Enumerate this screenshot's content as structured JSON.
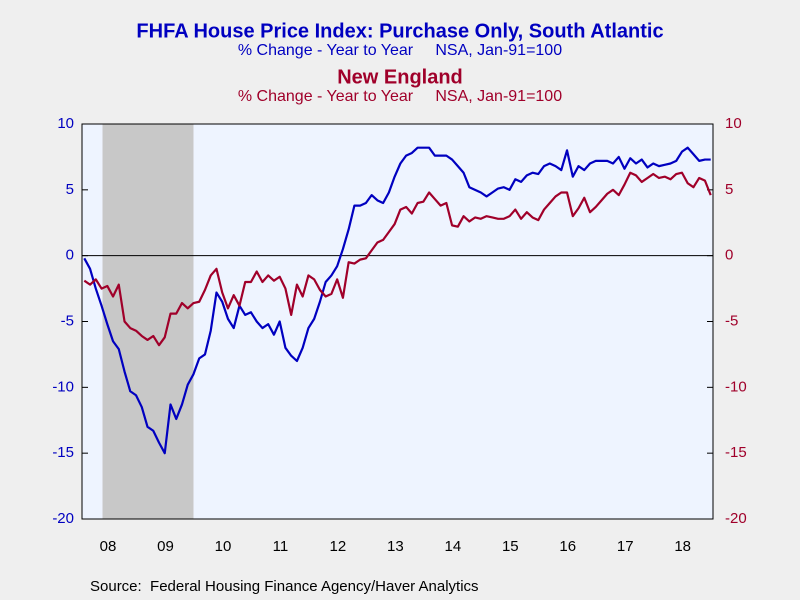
{
  "chart_data": {
    "type": "line",
    "title": "FHFA House Price Index: Purchase Only, South Atlantic",
    "subtitle": "% Change - Year to Year     NSA, Jan-91=100",
    "title2": "New England",
    "subtitle2": "% Change - Year to Year     NSA, Jan-91=100",
    "source": "Source:  Federal Housing Finance Agency/Haver Analytics",
    "xlim": [
      2007.56,
      2018.54
    ],
    "xticks": [
      {
        "value": 2008.5,
        "label": "08"
      },
      {
        "value": 2009.5,
        "label": "09"
      },
      {
        "value": 2010.5,
        "label": "10"
      },
      {
        "value": 2011.5,
        "label": "11"
      },
      {
        "value": 2012.5,
        "label": "12"
      },
      {
        "value": 2013.5,
        "label": "13"
      },
      {
        "value": 2014.5,
        "label": "14"
      },
      {
        "value": 2015.5,
        "label": "15"
      },
      {
        "value": 2016.5,
        "label": "16"
      },
      {
        "value": 2017.5,
        "label": "17"
      },
      {
        "value": 2018.5,
        "label": "18"
      }
    ],
    "ylim": [
      -20,
      10
    ],
    "yticks": [
      -20,
      -15,
      -10,
      -5,
      0,
      5,
      10
    ],
    "y2lim": [
      -20,
      10
    ],
    "y2ticks": [
      -20,
      -15,
      -10,
      -5,
      0,
      5,
      10
    ],
    "recession": [
      2007.917,
      2009.5
    ],
    "x": [
      2007.6,
      2007.7,
      2007.8,
      2007.9,
      2008.0,
      2008.1,
      2008.2,
      2008.3,
      2008.4,
      2008.5,
      2008.6,
      2008.7,
      2008.8,
      2008.9,
      2009.0,
      2009.1,
      2009.2,
      2009.3,
      2009.4,
      2009.5,
      2009.6,
      2009.7,
      2009.8,
      2009.9,
      2010.0,
      2010.1,
      2010.2,
      2010.3,
      2010.4,
      2010.5,
      2010.6,
      2010.7,
      2010.8,
      2010.9,
      2011.0,
      2011.1,
      2011.2,
      2011.3,
      2011.4,
      2011.5,
      2011.6,
      2011.7,
      2011.8,
      2011.9,
      2012.0,
      2012.1,
      2012.2,
      2012.3,
      2012.4,
      2012.5,
      2012.6,
      2012.7,
      2012.8,
      2012.9,
      2013.0,
      2013.1,
      2013.2,
      2013.3,
      2013.4,
      2013.5,
      2013.6,
      2013.7,
      2013.8,
      2013.9,
      2014.0,
      2014.1,
      2014.2,
      2014.3,
      2014.4,
      2014.5,
      2014.6,
      2014.7,
      2014.8,
      2014.9,
      2015.0,
      2015.1,
      2015.2,
      2015.3,
      2015.4,
      2015.5,
      2015.6,
      2015.7,
      2015.8,
      2015.9,
      2016.0,
      2016.1,
      2016.2,
      2016.3,
      2016.4,
      2016.5,
      2016.6,
      2016.7,
      2016.8,
      2016.9,
      2017.0,
      2017.1,
      2017.2,
      2017.3,
      2017.4,
      2017.5,
      2017.6,
      2017.7,
      2017.8,
      2017.9,
      2018.0,
      2018.1,
      2018.2,
      2018.3,
      2018.4,
      2018.5
    ],
    "series": [
      {
        "name": "South Atlantic",
        "color": "#0000c0",
        "values": [
          -0.2,
          -1,
          -2.5,
          -3.8,
          -5.2,
          -6.5,
          -7.1,
          -8.8,
          -10.3,
          -10.6,
          -11.5,
          -13,
          -13.3,
          -14.2,
          -15,
          -11.3,
          -12.4,
          -11.3,
          -9.8,
          -9,
          -7.8,
          -7.5,
          -5.7,
          -2.8,
          -3.5,
          -4.8,
          -5.5,
          -3.8,
          -4.5,
          -4.3,
          -5,
          -5.5,
          -5.2,
          -6,
          -5,
          -7,
          -7.6,
          -8,
          -7,
          -5.5,
          -4.8,
          -3.5,
          -2,
          -1.5,
          -0.8,
          0.5,
          2,
          3.8,
          3.8,
          4,
          4.6,
          4.2,
          4,
          4.8,
          6,
          7,
          7.6,
          7.8,
          8.2,
          8.2,
          8.2,
          7.6,
          7.6,
          7.6,
          7.3,
          6.8,
          6.3,
          5.2,
          5,
          4.8,
          4.5,
          4.8,
          5.1,
          5.2,
          5,
          5.8,
          5.6,
          6.1,
          6.3,
          6.2,
          6.8,
          7,
          6.8,
          6.5,
          8,
          6,
          6.8,
          6.5,
          7,
          7.2,
          7.2,
          7.2,
          7,
          7.5,
          6.6,
          7.4,
          7,
          7.3,
          6.7,
          7,
          6.8,
          6.9,
          7,
          7.2,
          7.9,
          8.2,
          7.7,
          7.2,
          7.3,
          7.3
        ]
      },
      {
        "name": "New England",
        "color": "#a0002a",
        "axis": "y2",
        "values": [
          -1.9,
          -2.2,
          -1.8,
          -2.5,
          -2.3,
          -3.1,
          -2.2,
          -5,
          -5.5,
          -5.7,
          -6.1,
          -6.4,
          -6.1,
          -6.8,
          -6.2,
          -4.4,
          -4.4,
          -3.6,
          -4,
          -3.6,
          -3.5,
          -2.6,
          -1.5,
          -1,
          -2.8,
          -4,
          -3,
          -3.8,
          -2,
          -2,
          -1.2,
          -2,
          -1.5,
          -1.9,
          -1.6,
          -2.5,
          -4.5,
          -2.2,
          -3.1,
          -1.5,
          -1.8,
          -2.6,
          -3.1,
          -2.9,
          -1.8,
          -3.2,
          -0.5,
          -0.6,
          -0.3,
          -0.2,
          0.4,
          1,
          1.2,
          1.8,
          2.4,
          3.5,
          3.7,
          3.2,
          4,
          4.1,
          4.8,
          4.3,
          3.8,
          4,
          2.3,
          2.2,
          3,
          2.6,
          2.9,
          2.8,
          3,
          2.9,
          2.8,
          2.8,
          3,
          3.5,
          2.8,
          3.3,
          2.9,
          2.7,
          3.5,
          4,
          4.5,
          4.8,
          4.8,
          3,
          3.6,
          4.4,
          3.3,
          3.7,
          4.2,
          4.7,
          5,
          4.6,
          5.4,
          6.3,
          6.1,
          5.6,
          5.9,
          6.2,
          5.9,
          6,
          5.8,
          6.2,
          6.3,
          5.5,
          5.2,
          5.9,
          5.7,
          4.6
        ]
      }
    ]
  }
}
